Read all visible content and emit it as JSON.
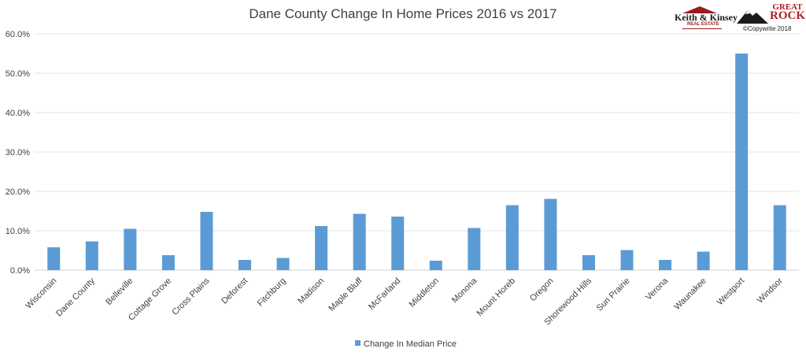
{
  "logos": {
    "keith_kinsey": {
      "name": "Keith & Kinsey",
      "sub": "REAL ESTATE"
    },
    "great_rock": {
      "line1": "GREAT",
      "line2": "ROCK",
      "copyright": "©Copywrite 2018"
    }
  },
  "chart_data": {
    "type": "bar",
    "title": "Dane County Change In Home Prices 2016 vs 2017",
    "xlabel": "",
    "ylabel": "",
    "ylim": [
      0,
      60
    ],
    "yticks": [
      "0.0%",
      "10.0%",
      "20.0%",
      "30.0%",
      "40.0%",
      "50.0%",
      "60.0%"
    ],
    "grid": true,
    "legend_position": "bottom",
    "bar_color": "#5b9bd5",
    "categories": [
      "Wisconsin",
      "Dane County",
      "Belleville",
      "Cottage Grove",
      "Cross Plains",
      "Deforest",
      "Fitchburg",
      "Madison",
      "Maple Bluff",
      "McFarland",
      "Middleton",
      "Monona",
      "Mount Horeb",
      "Oregon",
      "Shorewood Hills",
      "Sun Prairie",
      "Verona",
      "Waunakee",
      "Westport",
      "Windsor"
    ],
    "series": [
      {
        "name": "Change In Median Price",
        "values": [
          5.8,
          7.3,
          10.5,
          3.8,
          14.8,
          2.6,
          3.1,
          11.2,
          14.3,
          13.6,
          2.4,
          10.7,
          16.5,
          18.1,
          3.8,
          5.1,
          2.6,
          4.7,
          55.0,
          16.5
        ]
      }
    ]
  }
}
